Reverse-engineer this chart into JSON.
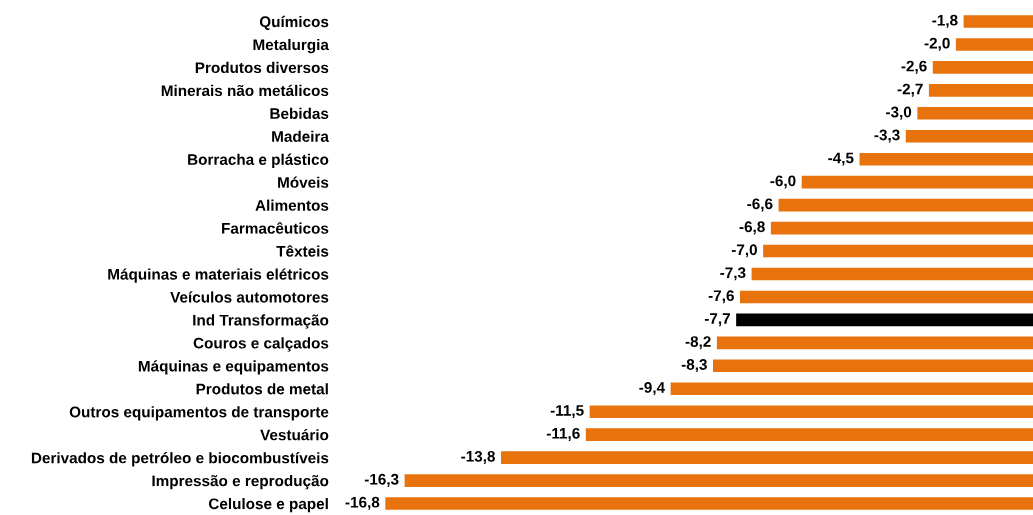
{
  "chart_data": {
    "type": "bar",
    "orientation": "horizontal",
    "categories": [
      "Químicos",
      "Metalurgia",
      "Produtos diversos",
      "Minerais não metálicos",
      "Bebidas",
      "Madeira",
      "Borracha e plástico",
      "Móveis",
      "Alimentos",
      "Farmacêuticos",
      "Têxteis",
      "Máquinas e materiais elétricos",
      "Veículos automotores",
      "Ind Transformação",
      "Couros e calçados",
      "Máquinas e equipamentos",
      "Produtos de metal",
      "Outros equipamentos de transporte",
      "Vestuário",
      "Derivados de petróleo e biocombustíveis",
      "Impressão e reprodução",
      "Celulose e papel"
    ],
    "values": [
      -1.8,
      -2.0,
      -2.6,
      -2.7,
      -3.0,
      -3.3,
      -4.5,
      -6.0,
      -6.6,
      -6.8,
      -7.0,
      -7.3,
      -7.6,
      -7.7,
      -8.2,
      -8.3,
      -9.4,
      -11.5,
      -11.6,
      -13.8,
      -16.3,
      -16.8
    ],
    "colors": [
      "#e8720c",
      "#e8720c",
      "#e8720c",
      "#e8720c",
      "#e8720c",
      "#e8720c",
      "#e8720c",
      "#e8720c",
      "#e8720c",
      "#e8720c",
      "#e8720c",
      "#e8720c",
      "#e8720c",
      "#000000",
      "#e8720c",
      "#e8720c",
      "#e8720c",
      "#e8720c",
      "#e8720c",
      "#e8720c",
      "#e8720c",
      "#e8720c"
    ],
    "value_labels": [
      "-1,8",
      "-2,0",
      "-2,6",
      "-2,7",
      "-3,0",
      "-3,3",
      "-4,5",
      "-6,0",
      "-6,6",
      "-6,8",
      "-7,0",
      "-7,3",
      "-7,6",
      "-7,7",
      "-8,2",
      "-8,3",
      "-9,4",
      "-11,5",
      "-11,6",
      "-13,8",
      "-16,3",
      "-16,8"
    ],
    "tick_labels": "y",
    "grid": false,
    "legend": false
  }
}
